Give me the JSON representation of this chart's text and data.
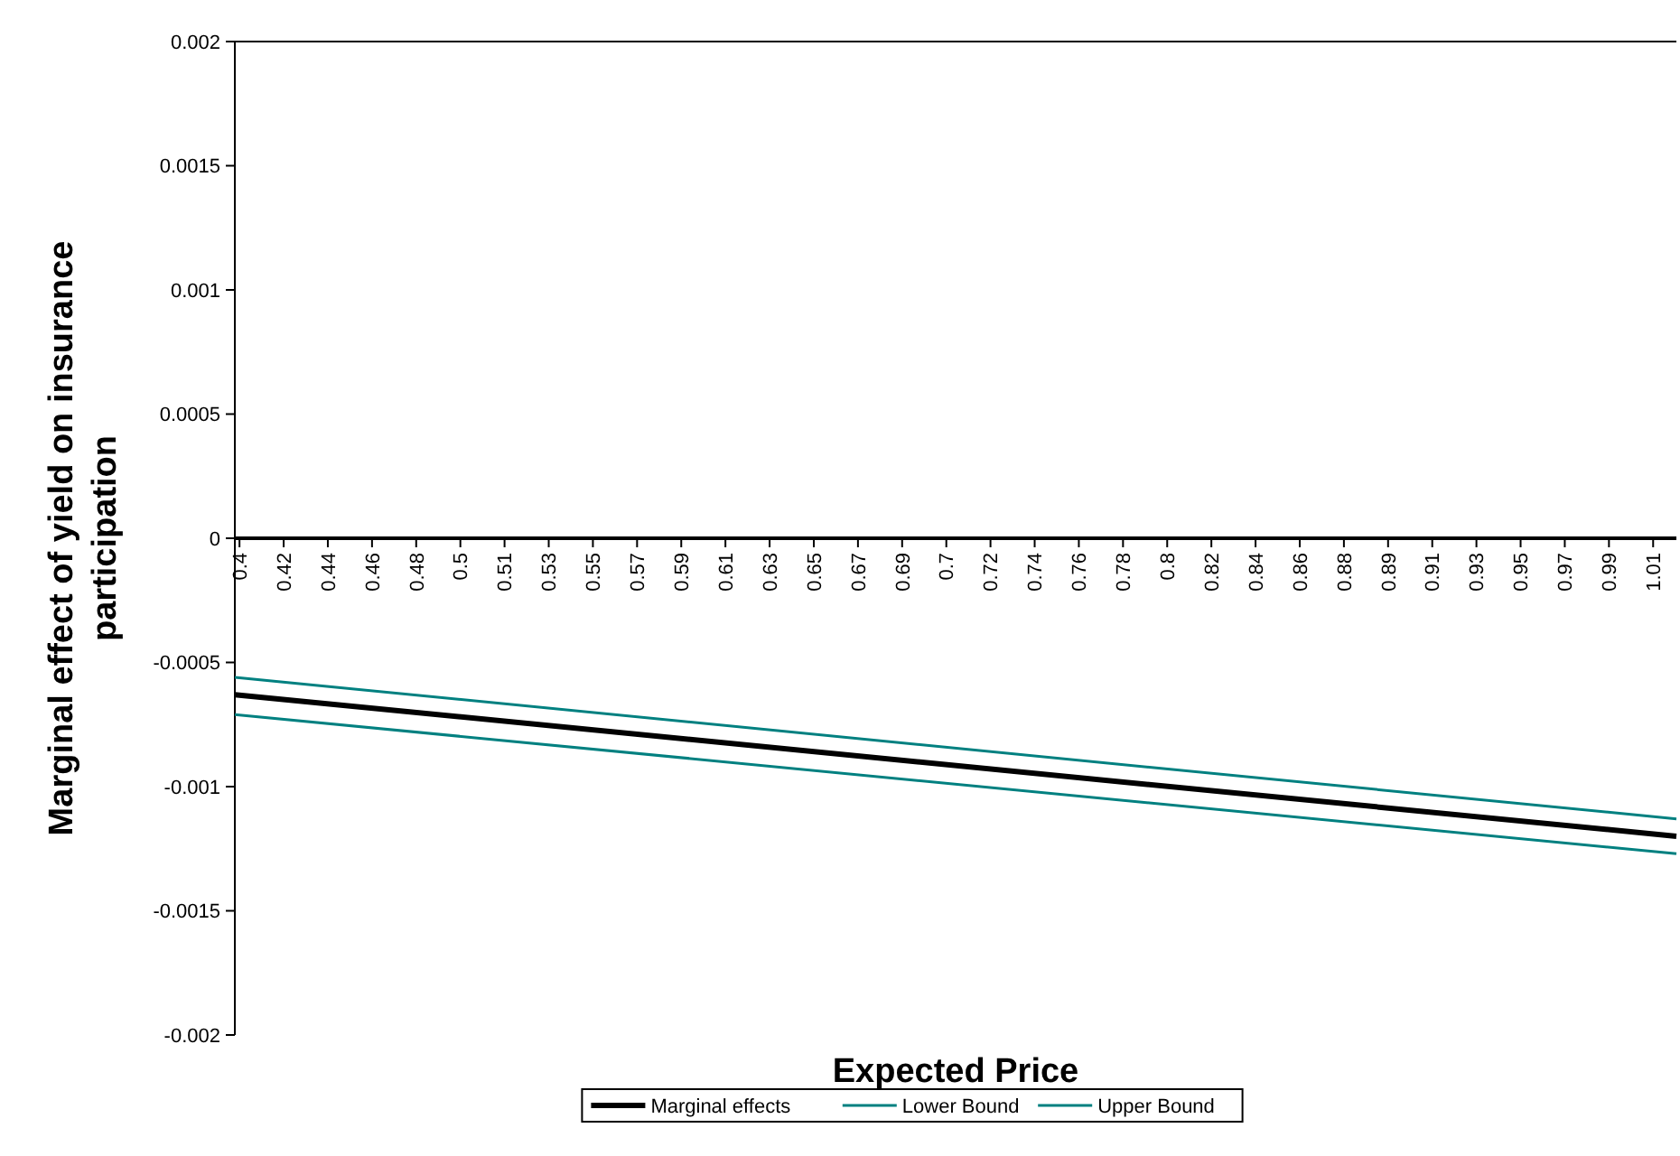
{
  "chart_data": {
    "type": "line",
    "xlabel": "Expected Price",
    "ylabel": "Marginal effect of yield on insurance participation",
    "x": [
      0.398,
      1.018
    ],
    "series": [
      {
        "name": "Marginal effects",
        "color": "#000000",
        "values": [
          -0.00063,
          -0.0012
        ]
      },
      {
        "name": "Lower Bound",
        "color": "#008080",
        "values": [
          -0.00071,
          -0.00127
        ]
      },
      {
        "name": "Upper Bound",
        "color": "#008080",
        "values": [
          -0.00056,
          -0.00113
        ]
      }
    ],
    "xlim": [
      0.398,
      1.018
    ],
    "xticks": [
      {
        "value": 0.4,
        "label": "0.4"
      },
      {
        "value": 0.419,
        "label": "0.42"
      },
      {
        "value": 0.438,
        "label": "0.44"
      },
      {
        "value": 0.457,
        "label": "0.46"
      },
      {
        "value": 0.476,
        "label": "0.48"
      },
      {
        "value": 0.495,
        "label": "0.5"
      },
      {
        "value": 0.514,
        "label": "0.51"
      },
      {
        "value": 0.533,
        "label": "0.53"
      },
      {
        "value": 0.552,
        "label": "0.55"
      },
      {
        "value": 0.571,
        "label": "0.57"
      },
      {
        "value": 0.59,
        "label": "0.59"
      },
      {
        "value": 0.609,
        "label": "0.61"
      },
      {
        "value": 0.628,
        "label": "0.63"
      },
      {
        "value": 0.647,
        "label": "0.65"
      },
      {
        "value": 0.666,
        "label": "0.67"
      },
      {
        "value": 0.685,
        "label": "0.69"
      },
      {
        "value": 0.704,
        "label": "0.7"
      },
      {
        "value": 0.723,
        "label": "0.72"
      },
      {
        "value": 0.742,
        "label": "0.74"
      },
      {
        "value": 0.761,
        "label": "0.76"
      },
      {
        "value": 0.78,
        "label": "0.78"
      },
      {
        "value": 0.799,
        "label": "0.8"
      },
      {
        "value": 0.818,
        "label": "0.82"
      },
      {
        "value": 0.837,
        "label": "0.84"
      },
      {
        "value": 0.856,
        "label": "0.86"
      },
      {
        "value": 0.875,
        "label": "0.88"
      },
      {
        "value": 0.894,
        "label": "0.89"
      },
      {
        "value": 0.913,
        "label": "0.91"
      },
      {
        "value": 0.932,
        "label": "0.93"
      },
      {
        "value": 0.951,
        "label": "0.95"
      },
      {
        "value": 0.97,
        "label": "0.97"
      },
      {
        "value": 0.989,
        "label": "0.99"
      },
      {
        "value": 1.008,
        "label": "1.01"
      }
    ],
    "ylim": [
      -0.002,
      0.002
    ],
    "yticks": [
      -0.002,
      -0.0015,
      -0.001,
      -0.0005,
      0,
      0.0005,
      0.001,
      0.0015,
      0.002
    ],
    "legend": "bottom",
    "grid": false,
    "marker": "none",
    "line_style": "solid"
  }
}
